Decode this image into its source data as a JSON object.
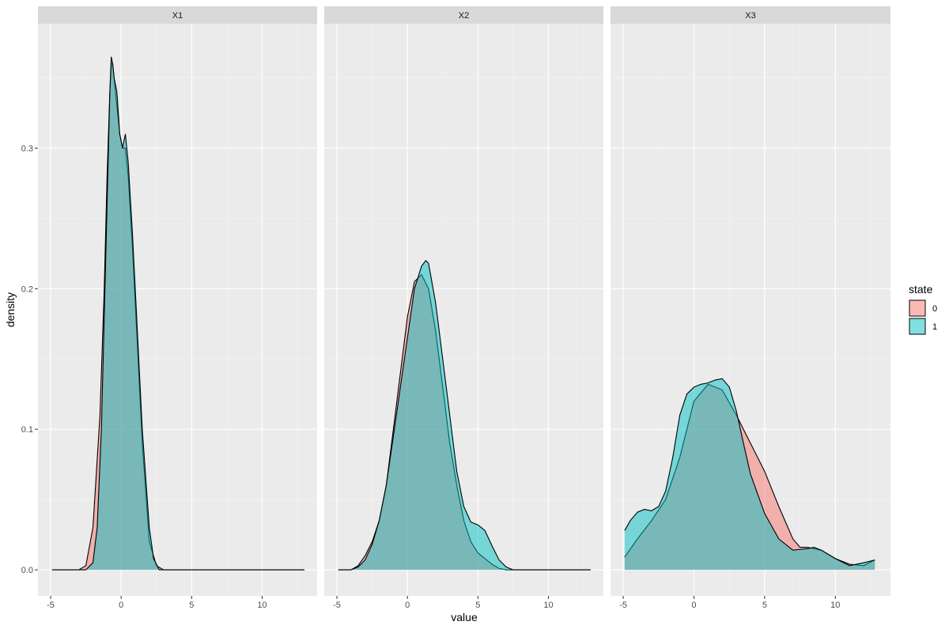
{
  "chart_data": {
    "type": "area",
    "xlabel": "value",
    "ylabel": "density",
    "xlim": [
      -5,
      13
    ],
    "ylim": [
      0,
      0.37
    ],
    "x_ticks": [
      -5,
      0,
      5,
      10
    ],
    "x_tick_labels": [
      "-5",
      "0",
      "5",
      "10"
    ],
    "y_ticks": [
      0,
      0.1,
      0.2,
      0.3
    ],
    "y_tick_labels": [
      "0.0",
      "0.1",
      "0.2",
      "0.3"
    ],
    "grid": true,
    "legend": {
      "title": "state",
      "position": "right",
      "entries": [
        {
          "label": "0",
          "color": "#F8766D"
        },
        {
          "label": "1",
          "color": "#00BFC4"
        }
      ]
    },
    "panels": [
      {
        "label": "X1",
        "series": [
          {
            "name": "0",
            "color": "#F8766D",
            "x": [
              -4.9,
              -3.0,
              -2.5,
              -2.0,
              -1.5,
              -1.2,
              -1.0,
              -0.8,
              -0.7,
              -0.6,
              -0.5,
              -0.3,
              -0.1,
              0.1,
              0.3,
              0.5,
              0.8,
              1.0,
              1.5,
              2.0,
              2.5,
              3.0,
              13
            ],
            "y": [
              0,
              0,
              0.003,
              0.03,
              0.11,
              0.2,
              0.28,
              0.34,
              0.36,
              0.36,
              0.35,
              0.33,
              0.31,
              0.3,
              0.3,
              0.28,
              0.23,
              0.19,
              0.09,
              0.02,
              0.003,
              0,
              0
            ]
          },
          {
            "name": "1",
            "color": "#00BFC4",
            "x": [
              -4.9,
              -2.5,
              -2.0,
              -1.7,
              -1.4,
              -1.2,
              -1.0,
              -0.8,
              -0.7,
              -0.6,
              -0.5,
              -0.3,
              -0.1,
              0.1,
              0.3,
              0.5,
              0.8,
              1.0,
              1.5,
              2.0,
              2.3,
              2.7,
              13
            ],
            "y": [
              0,
              0,
              0.005,
              0.03,
              0.1,
              0.18,
              0.26,
              0.34,
              0.365,
              0.36,
              0.35,
              0.34,
              0.31,
              0.3,
              0.31,
              0.29,
              0.24,
              0.2,
              0.1,
              0.03,
              0.008,
              0,
              0
            ]
          }
        ]
      },
      {
        "label": "X2",
        "series": [
          {
            "name": "0",
            "color": "#F8766D",
            "x": [
              -4.9,
              -4.0,
              -3.5,
              -3.0,
              -2.5,
              -2.0,
              -1.5,
              -1.0,
              -0.5,
              0,
              0.5,
              1.0,
              1.5,
              2.0,
              2.5,
              3.0,
              3.5,
              4.0,
              4.5,
              5.0,
              5.5,
              6.0,
              6.5,
              7.0,
              13
            ],
            "y": [
              0,
              0,
              0.003,
              0.01,
              0.02,
              0.035,
              0.06,
              0.1,
              0.14,
              0.18,
              0.205,
              0.21,
              0.2,
              0.17,
              0.13,
              0.09,
              0.06,
              0.035,
              0.02,
              0.012,
              0.008,
              0.004,
              0.001,
              0,
              0
            ]
          },
          {
            "name": "1",
            "color": "#00BFC4",
            "x": [
              -4.9,
              -4.0,
              -3.5,
              -3.0,
              -2.5,
              -2.0,
              -1.5,
              -1.0,
              -0.5,
              0,
              0.5,
              1.0,
              1.3,
              1.5,
              2.0,
              2.5,
              3.0,
              3.5,
              4.0,
              4.5,
              5.0,
              5.5,
              6.0,
              6.5,
              7.0,
              7.5,
              13
            ],
            "y": [
              0,
              0,
              0.002,
              0.007,
              0.018,
              0.035,
              0.06,
              0.095,
              0.13,
              0.165,
              0.2,
              0.216,
              0.22,
              0.218,
              0.19,
              0.15,
              0.11,
              0.07,
              0.045,
              0.034,
              0.032,
              0.028,
              0.017,
              0.007,
              0.002,
              0,
              0
            ]
          }
        ]
      },
      {
        "label": "X3",
        "series": [
          {
            "name": "0",
            "color": "#F8766D",
            "x": [
              -4.9,
              -4.0,
              -3.0,
              -2.0,
              -1.0,
              0,
              1.0,
              2.0,
              3.0,
              4.0,
              5.0,
              6.0,
              7.0,
              7.5,
              8.0,
              9.0,
              10.0,
              11.0,
              12.0,
              12.8
            ],
            "y": [
              0.009,
              0.022,
              0.035,
              0.05,
              0.08,
              0.12,
              0.132,
              0.128,
              0.11,
              0.09,
              0.07,
              0.045,
              0.022,
              0.016,
              0.016,
              0.014,
              0.008,
              0.004,
              0.003,
              0.007
            ]
          },
          {
            "name": "1",
            "color": "#00BFC4",
            "x": [
              -4.9,
              -4.5,
              -4.0,
              -3.5,
              -3.0,
              -2.5,
              -2.0,
              -1.5,
              -1.0,
              -0.5,
              0,
              0.5,
              1.0,
              1.5,
              2.0,
              2.5,
              3.0,
              3.5,
              4.0,
              5.0,
              6.0,
              7.0,
              8.0,
              8.5,
              9.0,
              10.0,
              11.0,
              12.0,
              12.8
            ],
            "y": [
              0.028,
              0.035,
              0.041,
              0.043,
              0.042,
              0.045,
              0.056,
              0.08,
              0.11,
              0.125,
              0.13,
              0.132,
              0.133,
              0.135,
              0.136,
              0.13,
              0.113,
              0.09,
              0.068,
              0.04,
              0.022,
              0.014,
              0.015,
              0.016,
              0.014,
              0.008,
              0.003,
              0.005,
              0.007
            ]
          }
        ]
      }
    ]
  }
}
